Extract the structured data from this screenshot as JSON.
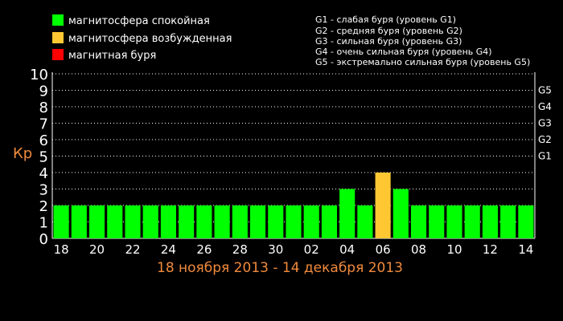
{
  "legend": {
    "items": [
      {
        "label": "магнитосфера спокойная",
        "color": "#00ff00"
      },
      {
        "label": "магнитосфера возбужденная",
        "color": "#ffc832"
      },
      {
        "label": "магнитная буря",
        "color": "#ff0000"
      }
    ]
  },
  "storm_legend": [
    "G1 - слабая буря (уровень G1)",
    "G2 - средняя буря (уровень G2)",
    "G3 - сильная буря (уровень G3)",
    "G4 - очень сильная буря (уровень G4)",
    "G5 - экстремально сильная буря (уровень G5)"
  ],
  "chart_data": {
    "type": "bar",
    "ylabel": "Кp",
    "subtitle": "18 ноября 2013 - 14 декабря 2013",
    "ylim": [
      0,
      10
    ],
    "yticks": [
      "0",
      "1",
      "2",
      "3",
      "4",
      "5",
      "6",
      "7",
      "8",
      "9",
      "10"
    ],
    "g_levels": [
      {
        "label": "G1",
        "value": 5
      },
      {
        "label": "G2",
        "value": 6
      },
      {
        "label": "G3",
        "value": 7
      },
      {
        "label": "G4",
        "value": 8
      },
      {
        "label": "G5",
        "value": 9
      }
    ],
    "categories": [
      "18",
      "19",
      "20",
      "21",
      "22",
      "23",
      "24",
      "25",
      "26",
      "27",
      "28",
      "29",
      "30",
      "01",
      "02",
      "03",
      "04",
      "05",
      "06",
      "07",
      "08",
      "09",
      "10",
      "11",
      "12",
      "13",
      "14"
    ],
    "tick_labels_shown": [
      "18",
      "20",
      "22",
      "24",
      "26",
      "28",
      "30",
      "02",
      "04",
      "06",
      "08",
      "10",
      "12",
      "14"
    ],
    "values": [
      2,
      2,
      2,
      2,
      2,
      2,
      2,
      2,
      2,
      2,
      2,
      2,
      2,
      2,
      2,
      2,
      3,
      2,
      4,
      3,
      2,
      2,
      2,
      2,
      2,
      2,
      2
    ],
    "bar_colors": {
      "quiet": "#00ff00",
      "active": "#ffc832",
      "storm": "#ff0000"
    },
    "grid": true
  }
}
